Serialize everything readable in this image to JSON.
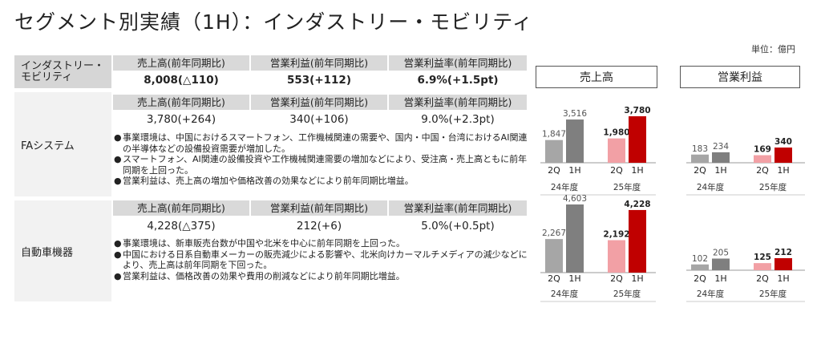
{
  "title": "セグメント別実績（1H）：インダストリー・モビリティ",
  "unit": "単位：億円",
  "table": {
    "headers": [
      "売上高(前年同期比)",
      "営業利益(前年同期比)",
      "営業利益率(前年同期比)"
    ],
    "total": {
      "label_line1": "インダストリー・",
      "label_line2": "モビリティ",
      "values": [
        "8,008(△110)",
        "553(+112)",
        "6.9%(+1.5pt)"
      ]
    },
    "segments": [
      {
        "name": "FAシステム",
        "values": [
          "3,780(+264)",
          "340(+106)",
          "9.0%(+2.3pt)"
        ],
        "notes": [
          "事業環境は、中国におけるスマートフォン、工作機械関連の需要や、国内・中国・台湾におけるAI関連の半導体などの設備投資需要が増加した。",
          "スマートフォン、AI関連の設備投資や工作機械関連需要の増加などにより、受注高・売上高ともに前年同期を上回った。",
          "営業利益は、売上高の増加や価格改善の効果などにより前年同期比増益。"
        ]
      },
      {
        "name": "自動車機器",
        "values": [
          "4,228(△375)",
          "212(+6)",
          "5.0%(+0.5pt)"
        ],
        "notes": [
          "事業環境は、新車販売台数が中国や北米を中心に前年同期を上回った。",
          "中国における日系自動車メーカーの販売減少による影響や、北米向けカーマルチメディアの減少などにより、売上高は前年同期を下回った。",
          "営業利益は、価格改善の効果や費用の削減などにより前年同期比増益。"
        ]
      }
    ]
  },
  "bullet": "●",
  "chart_headers": [
    "売上高",
    "営業利益"
  ],
  "colors": {
    "fy24_2q": "#a6a6a6",
    "fy24_1h": "#7f7f7f",
    "fy25_2q": "#f2a0a5",
    "fy25_1h": "#c00000",
    "axis": "#999999"
  },
  "chart_data": [
    {
      "type": "bar",
      "segment": "FAシステム",
      "metric": "売上高",
      "groups": [
        "24年度",
        "25年度"
      ],
      "categories": [
        "2Q",
        "1H"
      ],
      "series": [
        {
          "values": [
            1847,
            3516
          ],
          "labels": [
            "1,847",
            "3,516"
          ]
        },
        {
          "values": [
            1980,
            3780
          ],
          "labels": [
            "1,980",
            "3,780"
          ]
        }
      ]
    },
    {
      "type": "bar",
      "segment": "FAシステム",
      "metric": "営業利益",
      "groups": [
        "24年度",
        "25年度"
      ],
      "categories": [
        "2Q",
        "1H"
      ],
      "series": [
        {
          "values": [
            183,
            234
          ],
          "labels": [
            "183",
            "234"
          ]
        },
        {
          "values": [
            169,
            340
          ],
          "labels": [
            "169",
            "340"
          ]
        }
      ]
    },
    {
      "type": "bar",
      "segment": "自動車機器",
      "metric": "売上高",
      "groups": [
        "24年度",
        "25年度"
      ],
      "categories": [
        "2Q",
        "1H"
      ],
      "series": [
        {
          "values": [
            2267,
            4603
          ],
          "labels": [
            "2,267",
            "4,603"
          ]
        },
        {
          "values": [
            2192,
            4228
          ],
          "labels": [
            "2,192",
            "4,228"
          ]
        }
      ]
    },
    {
      "type": "bar",
      "segment": "自動車機器",
      "metric": "営業利益",
      "groups": [
        "24年度",
        "25年度"
      ],
      "categories": [
        "2Q",
        "1H"
      ],
      "series": [
        {
          "values": [
            102,
            205
          ],
          "labels": [
            "102",
            "205"
          ]
        },
        {
          "values": [
            125,
            212
          ],
          "labels": [
            "125",
            "212"
          ]
        }
      ]
    }
  ]
}
